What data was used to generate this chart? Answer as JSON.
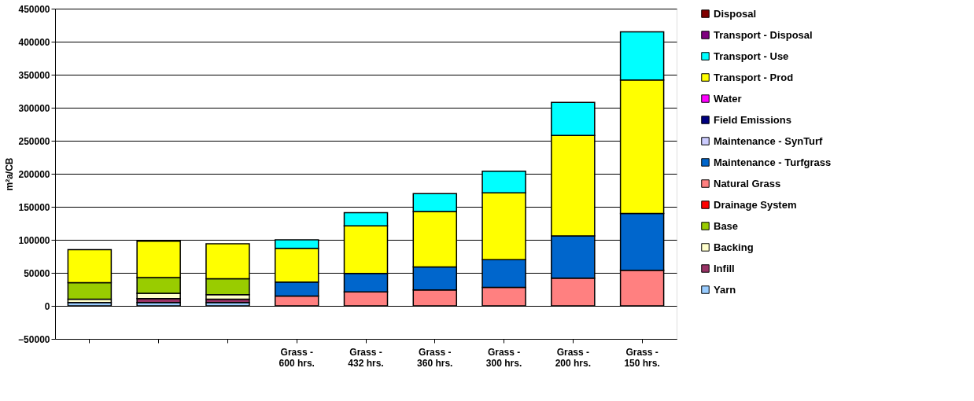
{
  "chart_data": {
    "type": "bar",
    "stacked": true,
    "ylabel": "m²a/CB",
    "categories": [
      null,
      null,
      null,
      "Grass - 600 hrs.",
      "Grass - 432 hrs.",
      "Grass - 360 hrs.",
      "Grass - 300 hrs.",
      "Grass - 200 hrs.",
      "Grass - 150 hrs."
    ],
    "ylim": [
      -50000,
      450000
    ],
    "yticks": [
      -50000,
      0,
      50000,
      100000,
      150000,
      200000,
      250000,
      300000,
      350000,
      400000,
      450000
    ],
    "grid": "y",
    "legend": "right",
    "series": [
      {
        "name": "Yarn",
        "color": "#99ccff",
        "values": [
          5000,
          5000,
          5000,
          null,
          null,
          null,
          null,
          null,
          null
        ]
      },
      {
        "name": "Infill",
        "color": "#993366",
        "values": [
          null,
          6000,
          5000,
          null,
          null,
          null,
          null,
          null,
          null
        ]
      },
      {
        "name": "Backing",
        "color": "#ffffcc",
        "values": [
          5000,
          8000,
          7000,
          null,
          null,
          null,
          null,
          null,
          null
        ]
      },
      {
        "name": "Base",
        "color": "#99cc00",
        "values": [
          25000,
          24000,
          24000,
          null,
          null,
          null,
          null,
          null,
          null
        ]
      },
      {
        "name": "Drainage System",
        "color": "#ff0000",
        "values": [
          null,
          null,
          null,
          null,
          null,
          null,
          null,
          null,
          null
        ]
      },
      {
        "name": "Natural Grass",
        "color": "#ff8080",
        "values": [
          null,
          null,
          null,
          15000,
          21000,
          24000,
          28000,
          42000,
          54000
        ]
      },
      {
        "name": "Maintenance - Turfgrass",
        "color": "#0066cc",
        "values": [
          null,
          null,
          null,
          21000,
          28000,
          35000,
          42000,
          64000,
          86000
        ]
      },
      {
        "name": "Maintenance - SynTurf",
        "color": "#ccccff",
        "values": [
          null,
          null,
          null,
          null,
          null,
          null,
          null,
          null,
          null
        ]
      },
      {
        "name": "Field Emissions",
        "color": "#000080",
        "values": [
          null,
          null,
          null,
          null,
          null,
          null,
          null,
          null,
          null
        ]
      },
      {
        "name": "Water",
        "color": "#ff00ff",
        "values": [
          null,
          null,
          null,
          null,
          null,
          null,
          null,
          null,
          null
        ]
      },
      {
        "name": "Transport - Prod",
        "color": "#ffff00",
        "values": [
          50000,
          55000,
          53000,
          51000,
          72000,
          84000,
          101000,
          152000,
          202000
        ]
      },
      {
        "name": "Transport - Use",
        "color": "#00ffff",
        "values": [
          null,
          null,
          null,
          13000,
          20000,
          27000,
          33000,
          50000,
          73000
        ]
      },
      {
        "name": "Transport - Disposal",
        "color": "#800080",
        "values": [
          null,
          null,
          null,
          null,
          null,
          null,
          null,
          null,
          null
        ]
      },
      {
        "name": "Disposal",
        "color": "#800000",
        "values": [
          null,
          null,
          null,
          null,
          null,
          null,
          null,
          null,
          null
        ]
      }
    ]
  }
}
